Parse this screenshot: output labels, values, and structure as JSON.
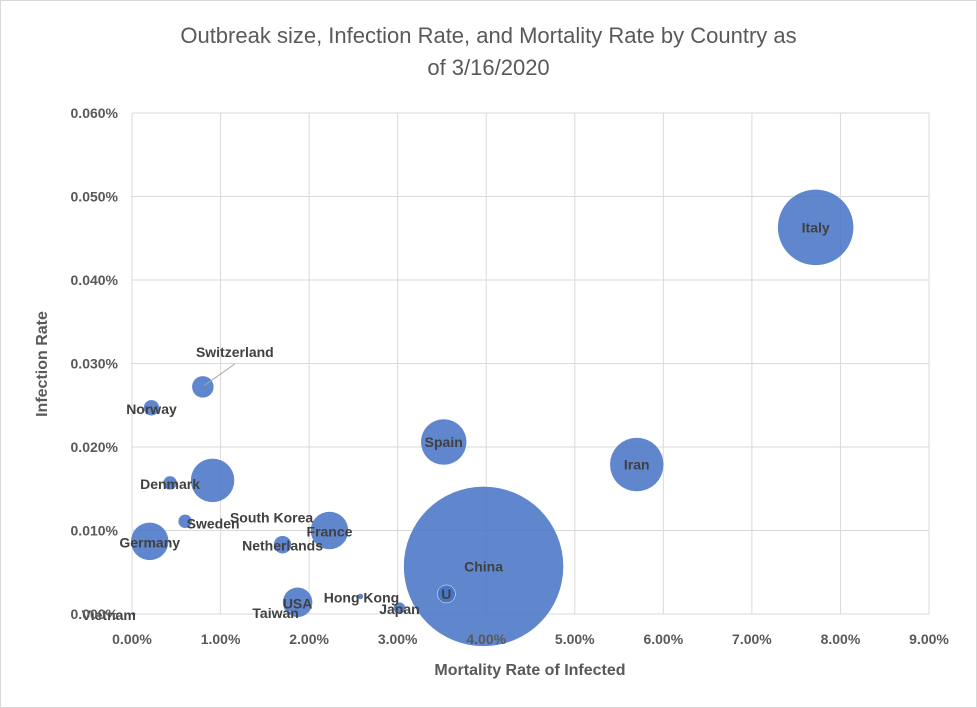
{
  "chart_data": {
    "type": "bubble",
    "title_line1": "Outbreak size, Infection Rate, and Mortality Rate by Country as",
    "title_line2": "of 3/16/2020",
    "xlabel": "Mortality Rate of Infected",
    "ylabel": "Infection Rate",
    "xlim": [
      0,
      9
    ],
    "ylim": [
      0,
      0.06
    ],
    "x_ticks": [
      "0.00%",
      "1.00%",
      "2.00%",
      "3.00%",
      "4.00%",
      "5.00%",
      "6.00%",
      "7.00%",
      "8.00%",
      "9.00%"
    ],
    "y_ticks": [
      "0.000%",
      "0.010%",
      "0.020%",
      "0.030%",
      "0.040%",
      "0.050%",
      "0.060%"
    ],
    "grid": true,
    "legend": "none",
    "color": "#4472c4",
    "points": [
      {
        "label": "China",
        "x": 3.97,
        "y": 0.0057,
        "r": 80
      },
      {
        "label": "Italy",
        "x": 7.72,
        "y": 0.0463,
        "r": 38
      },
      {
        "label": "Iran",
        "x": 5.7,
        "y": 0.0179,
        "r": 27
      },
      {
        "label": "Spain",
        "x": 3.52,
        "y": 0.0206,
        "r": 23
      },
      {
        "label": "Germany",
        "x": 0.2,
        "y": 0.0087,
        "r": 19
      },
      {
        "label": "France",
        "x": 2.23,
        "y": 0.01,
        "r": 19
      },
      {
        "label": "Switzerland",
        "x": 0.8,
        "y": 0.0272,
        "r": 11
      },
      {
        "label": "Norway",
        "x": 0.22,
        "y": 0.0247,
        "r": 8
      },
      {
        "label": "Denmark",
        "x": 0.43,
        "y": 0.0157,
        "r": 7
      },
      {
        "label": "Sweden",
        "x": 0.6,
        "y": 0.0111,
        "r": 7
      },
      {
        "label": "South Korea",
        "x": 0.91,
        "y": 0.016,
        "r": 22
      },
      {
        "label": "Netherlands",
        "x": 1.7,
        "y": 0.0083,
        "r": 9
      },
      {
        "label": "USA",
        "x": 1.87,
        "y": 0.0014,
        "r": 15
      },
      {
        "label": "Hong Kong",
        "x": 2.58,
        "y": 0.0021,
        "r": 3
      },
      {
        "label": "Japan",
        "x": 3.02,
        "y": 0.0007,
        "r": 6
      },
      {
        "label": "U",
        "x": 3.55,
        "y": 0.0024,
        "r": 9
      },
      {
        "label": "Taiwan",
        "x": 1.78,
        "y": 0.0001,
        "r": 2
      },
      {
        "label": "Vietnam",
        "x": 0.02,
        "y": 0.0,
        "r": 2
      }
    ]
  }
}
